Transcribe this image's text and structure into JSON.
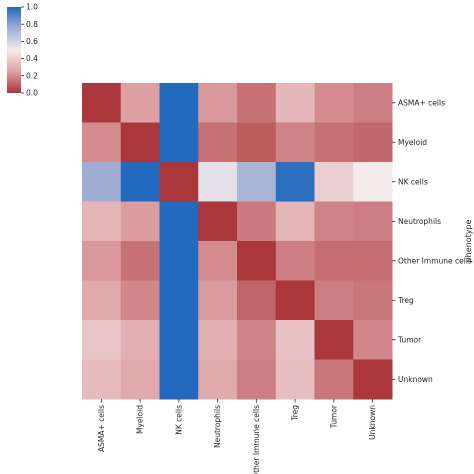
{
  "chart_data": {
    "type": "heatmap",
    "title": "",
    "xlabel": "",
    "ylabel": "phenotype",
    "columns": [
      "ASMA+ cells",
      "Myeloid",
      "NK cells",
      "Neutrophils",
      "Other Immune cells",
      "Treg",
      "Tumor",
      "Unknown"
    ],
    "rows": [
      "ASMA+ cells",
      "Myeloid",
      "NK cells",
      "Neutrophils",
      "Other Immune cells",
      "Treg",
      "Tumor",
      "Unknown"
    ],
    "values": [
      [
        0.0,
        0.25,
        1.0,
        0.23,
        0.14,
        0.33,
        0.2,
        0.17
      ],
      [
        0.2,
        0.0,
        1.0,
        0.14,
        0.09,
        0.18,
        0.14,
        0.12
      ],
      [
        0.75,
        1.0,
        0.0,
        0.55,
        0.72,
        0.98,
        0.4,
        0.5
      ],
      [
        0.32,
        0.24,
        1.0,
        0.0,
        0.16,
        0.32,
        0.18,
        0.17
      ],
      [
        0.23,
        0.14,
        1.0,
        0.2,
        0.0,
        0.17,
        0.13,
        0.13
      ],
      [
        0.28,
        0.19,
        1.0,
        0.24,
        0.11,
        0.0,
        0.17,
        0.15
      ],
      [
        0.37,
        0.3,
        1.0,
        0.3,
        0.18,
        0.36,
        0.0,
        0.19
      ],
      [
        0.34,
        0.28,
        1.0,
        0.28,
        0.17,
        0.35,
        0.15,
        0.0
      ]
    ],
    "colorbar": {
      "min": 0.0,
      "max": 1.0,
      "ticks": [
        "0.0",
        "0.2",
        "0.4",
        "0.6",
        "0.8",
        "1.0"
      ],
      "colormap": "vlag_r",
      "colors": [
        "#a9373b",
        "#dda0a3",
        "#f4ecec",
        "#a0aed4",
        "#2369bd"
      ]
    },
    "legend": "none",
    "grid": false
  }
}
